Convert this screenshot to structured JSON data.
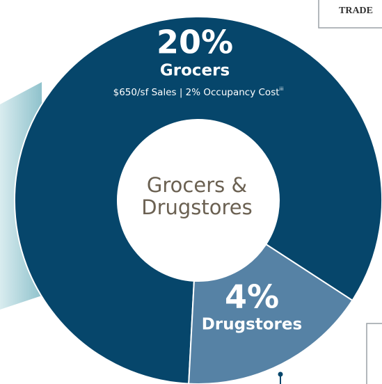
{
  "chart_data": {
    "type": "donut",
    "categories": [
      "Grocers",
      "Drugstores"
    ],
    "values": [
      20,
      4
    ],
    "value_labels": [
      "20%",
      "4%"
    ],
    "colors": [
      "#06466b",
      "#5682a5"
    ],
    "center_label": [
      "Grocers &",
      "Drugstores"
    ],
    "annotation": {
      "text": "$650/sf Sales  |  2% Occupancy Cost",
      "superscript": "iii"
    },
    "header_box": "TRADE"
  }
}
